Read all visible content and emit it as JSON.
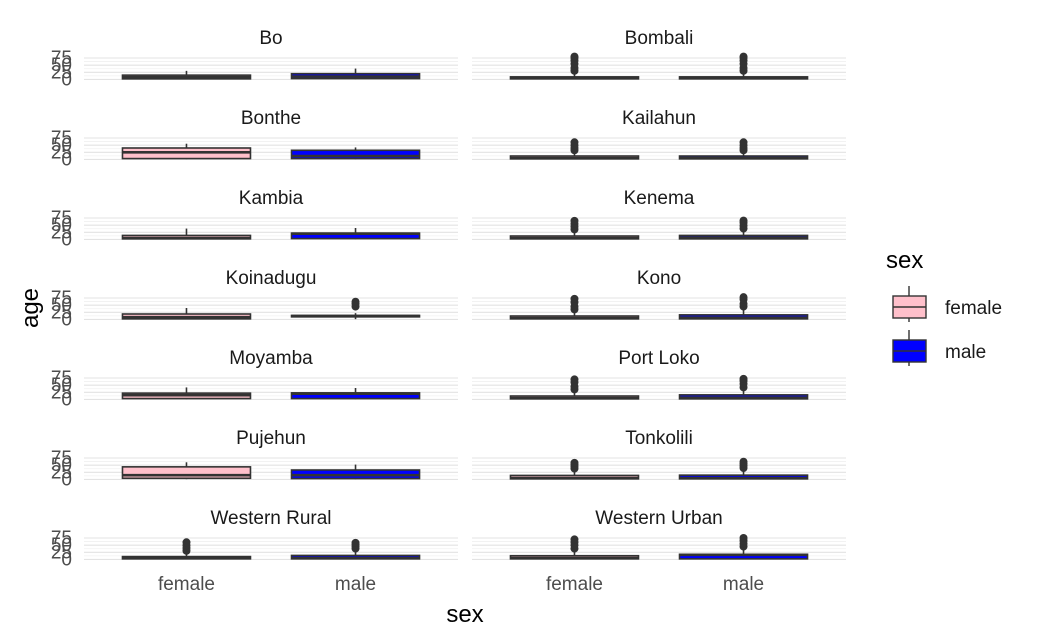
{
  "chart_data": {
    "type": "boxplot",
    "facet_by": "district",
    "xlabel": "sex",
    "ylabel": "age",
    "categories": [
      "female",
      "male"
    ],
    "y_ticks": [
      0,
      25,
      50,
      75
    ],
    "ylim": [
      -2,
      82
    ],
    "legend": {
      "title": "sex",
      "position": "right",
      "entries": [
        {
          "label": "female",
          "color": "#FFC0CB"
        },
        {
          "label": "male",
          "color": "#0000FF"
        }
      ]
    },
    "grid": true,
    "facets": [
      {
        "name": "Bo",
        "boxes": [
          {
            "sex": "female",
            "min": 1,
            "q1": 2,
            "median": 8,
            "q3": 15,
            "max": 30,
            "outliers": []
          },
          {
            "sex": "male",
            "min": 1,
            "q1": 3,
            "median": 10,
            "q3": 20,
            "max": 38,
            "outliers": []
          }
        ]
      },
      {
        "name": "Bombali",
        "boxes": [
          {
            "sex": "female",
            "min": 1,
            "q1": 2,
            "median": 5,
            "q3": 9,
            "max": 21,
            "outliers": [
              30,
              40,
              55,
              66,
              75,
              80
            ]
          },
          {
            "sex": "male",
            "min": 1,
            "q1": 2,
            "median": 5,
            "q3": 9,
            "max": 21,
            "outliers": [
              30,
              40,
              55,
              66,
              75,
              80
            ]
          }
        ]
      },
      {
        "name": "Bonthe",
        "boxes": [
          {
            "sex": "female",
            "min": 1,
            "q1": 3,
            "median": 25,
            "q3": 40,
            "max": 55,
            "outliers": []
          },
          {
            "sex": "male",
            "min": 1,
            "q1": 3,
            "median": 12,
            "q3": 32,
            "max": 42,
            "outliers": []
          }
        ]
      },
      {
        "name": "Kailahun",
        "boxes": [
          {
            "sex": "female",
            "min": 1,
            "q1": 2,
            "median": 5,
            "q3": 12,
            "max": 26,
            "outliers": [
              32,
              40,
              50,
              60
            ]
          },
          {
            "sex": "male",
            "min": 1,
            "q1": 2,
            "median": 5,
            "q3": 12,
            "max": 26,
            "outliers": [
              32,
              40,
              50,
              60
            ]
          }
        ]
      },
      {
        "name": "Kambia",
        "boxes": [
          {
            "sex": "female",
            "min": 1,
            "q1": 2,
            "median": 5,
            "q3": 14,
            "max": 38,
            "outliers": []
          },
          {
            "sex": "male",
            "min": 1,
            "q1": 3,
            "median": 20,
            "q3": 22,
            "max": 40,
            "outliers": []
          }
        ]
      },
      {
        "name": "Kenema",
        "boxes": [
          {
            "sex": "female",
            "min": 1,
            "q1": 2,
            "median": 5,
            "q3": 12,
            "max": 25,
            "outliers": [
              35,
              45,
              55,
              65
            ]
          },
          {
            "sex": "male",
            "min": 1,
            "q1": 2,
            "median": 6,
            "q3": 14,
            "max": 29,
            "outliers": [
              38,
              48,
              58,
              66
            ]
          }
        ]
      },
      {
        "name": "Koinadugu",
        "boxes": [
          {
            "sex": "female",
            "min": 1,
            "q1": 2,
            "median": 8,
            "q3": 19,
            "max": 40,
            "outliers": []
          },
          {
            "sex": "male",
            "min": 1,
            "q1": 9,
            "median": 12,
            "q3": 14,
            "max": 22,
            "outliers": [
              45,
              55,
              62
            ]
          }
        ]
      },
      {
        "name": "Kono",
        "boxes": [
          {
            "sex": "female",
            "min": 1,
            "q1": 2,
            "median": 5,
            "q3": 12,
            "max": 27,
            "outliers": [
              35,
              45,
              60,
              72
            ]
          },
          {
            "sex": "male",
            "min": 1,
            "q1": 2,
            "median": 6,
            "q3": 16,
            "max": 35,
            "outliers": [
              45,
              55,
              70,
              78
            ]
          }
        ]
      },
      {
        "name": "Moyamba",
        "boxes": [
          {
            "sex": "female",
            "min": 1,
            "q1": 3,
            "median": 15,
            "q3": 22,
            "max": 42,
            "outliers": []
          },
          {
            "sex": "male",
            "min": 1,
            "q1": 3,
            "median": 20,
            "q3": 23,
            "max": 40,
            "outliers": []
          }
        ]
      },
      {
        "name": "Port Loko",
        "boxes": [
          {
            "sex": "female",
            "min": 1,
            "q1": 2,
            "median": 5,
            "q3": 12,
            "max": 25,
            "outliers": [
              35,
              45,
              60,
              70
            ]
          },
          {
            "sex": "male",
            "min": 1,
            "q1": 2,
            "median": 6,
            "q3": 16,
            "max": 33,
            "outliers": [
              42,
              55,
              65,
              72
            ]
          }
        ]
      },
      {
        "name": "Pujehun",
        "boxes": [
          {
            "sex": "female",
            "min": 1,
            "q1": 4,
            "median": 15,
            "q3": 44,
            "max": 60,
            "outliers": []
          },
          {
            "sex": "male",
            "min": 1,
            "q1": 3,
            "median": 15,
            "q3": 33,
            "max": 52,
            "outliers": []
          }
        ]
      },
      {
        "name": "Tonkolili",
        "boxes": [
          {
            "sex": "female",
            "min": 1,
            "q1": 2,
            "median": 5,
            "q3": 14,
            "max": 30,
            "outliers": [
              38,
              45,
              52,
              58
            ]
          },
          {
            "sex": "male",
            "min": 1,
            "q1": 2,
            "median": 5,
            "q3": 15,
            "max": 32,
            "outliers": [
              40,
              48,
              55,
              62
            ]
          }
        ]
      },
      {
        "name": "Western Rural",
        "boxes": [
          {
            "sex": "female",
            "min": 1,
            "q1": 2,
            "median": 5,
            "q3": 10,
            "max": 22,
            "outliers": [
              30,
              40,
              50,
              60
            ]
          },
          {
            "sex": "male",
            "min": 1,
            "q1": 2,
            "median": 5,
            "q3": 14,
            "max": 30,
            "outliers": [
              38,
              45,
              52,
              58
            ]
          }
        ]
      },
      {
        "name": "Western Urban",
        "boxes": [
          {
            "sex": "female",
            "min": 1,
            "q1": 2,
            "median": 5,
            "q3": 13,
            "max": 28,
            "outliers": [
              38,
              50,
              60,
              70
            ]
          },
          {
            "sex": "male",
            "min": 1,
            "q1": 2,
            "median": 16,
            "q3": 18,
            "max": 36,
            "outliers": [
              45,
              55,
              65,
              75
            ]
          }
        ]
      }
    ]
  }
}
